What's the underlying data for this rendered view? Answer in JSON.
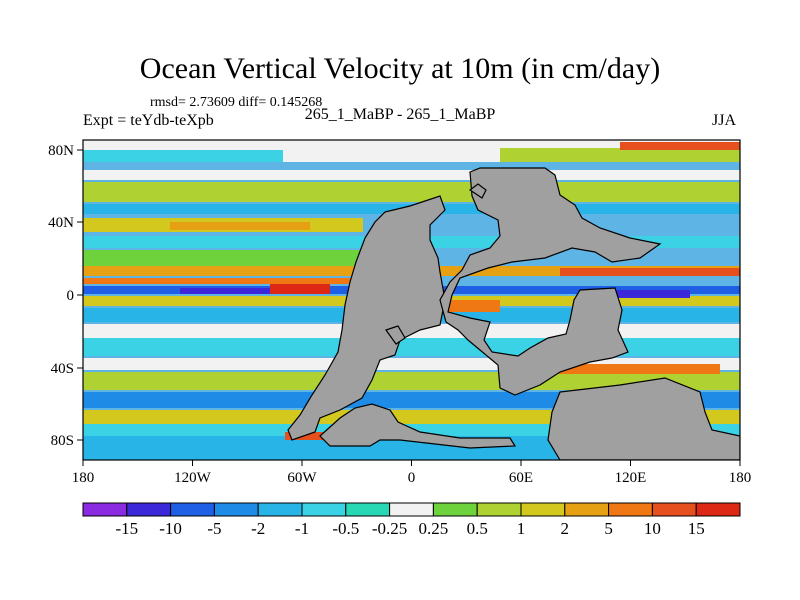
{
  "title": "Ocean Vertical Velocity at 10m (in cm/day)",
  "stats": "rmsd= 2.73609 diff= 0.145268",
  "subtitle": "265_1_MaBP - 265_1_MaBP",
  "experiment": "Expt = teYdb-teXpb",
  "season": "JJA",
  "lon_ticks": [
    "180",
    "120W",
    "60W",
    "0",
    "60E",
    "120E",
    "180"
  ],
  "lat_ticks": [
    "80N",
    "40N",
    "0",
    "40S",
    "80S"
  ],
  "colorbar": {
    "labels": [
      "-15",
      "-10",
      "-5",
      "-2",
      "-1",
      "-0.5",
      "-0.25",
      "0.25",
      "0.5",
      "1",
      "2",
      "5",
      "10",
      "15"
    ],
    "colors": [
      "#8a2be2",
      "#3c28d8",
      "#1e5fe6",
      "#1e8ce6",
      "#28b4e6",
      "#3cd2e6",
      "#28d7b4",
      "#f2f2f2",
      "#6ed23c",
      "#afd232",
      "#d2c81e",
      "#e6a014",
      "#f07814",
      "#e6501e",
      "#dc2814"
    ]
  },
  "colors": {
    "land": "#a0a0a0",
    "ocean_background": "#5fb4e6"
  }
}
